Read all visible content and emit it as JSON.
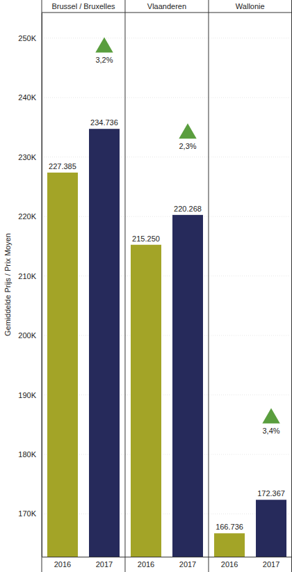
{
  "chart_data": {
    "type": "bar",
    "ylabel": "Gemiddelde Prijs / Prix Moyen",
    "groups": [
      "Brussel / Bruxelles",
      "Vlaanderen",
      "Wallonie"
    ],
    "categories": [
      "2016",
      "2017",
      "2016",
      "2017",
      "2016",
      "2017"
    ],
    "values": [
      227385,
      234736,
      215250,
      220268,
      166736,
      172367
    ],
    "value_labels": [
      "227.385",
      "234.736",
      "215.250",
      "220.268",
      "166.736",
      "172.367"
    ],
    "colors": [
      "#a3a427",
      "#262a5b",
      "#a3a427",
      "#262a5b",
      "#a3a427",
      "#262a5b"
    ],
    "changes": [
      3.2,
      2.3,
      3.4
    ],
    "change_labels": [
      "3,2%",
      "2,3%",
      "3,4%"
    ],
    "ylim": [
      162800,
      254300
    ],
    "yticks": [
      {
        "value": 170000,
        "label": "170K"
      },
      {
        "value": 180000,
        "label": "180K"
      },
      {
        "value": 190000,
        "label": "190K"
      },
      {
        "value": 200000,
        "label": "200K"
      },
      {
        "value": 210000,
        "label": "210K"
      },
      {
        "value": 220000,
        "label": "220K"
      },
      {
        "value": 230000,
        "label": "230K"
      },
      {
        "value": 240000,
        "label": "240K"
      },
      {
        "value": 250000,
        "label": "250K"
      }
    ],
    "grid": true,
    "data_labels": true
  }
}
